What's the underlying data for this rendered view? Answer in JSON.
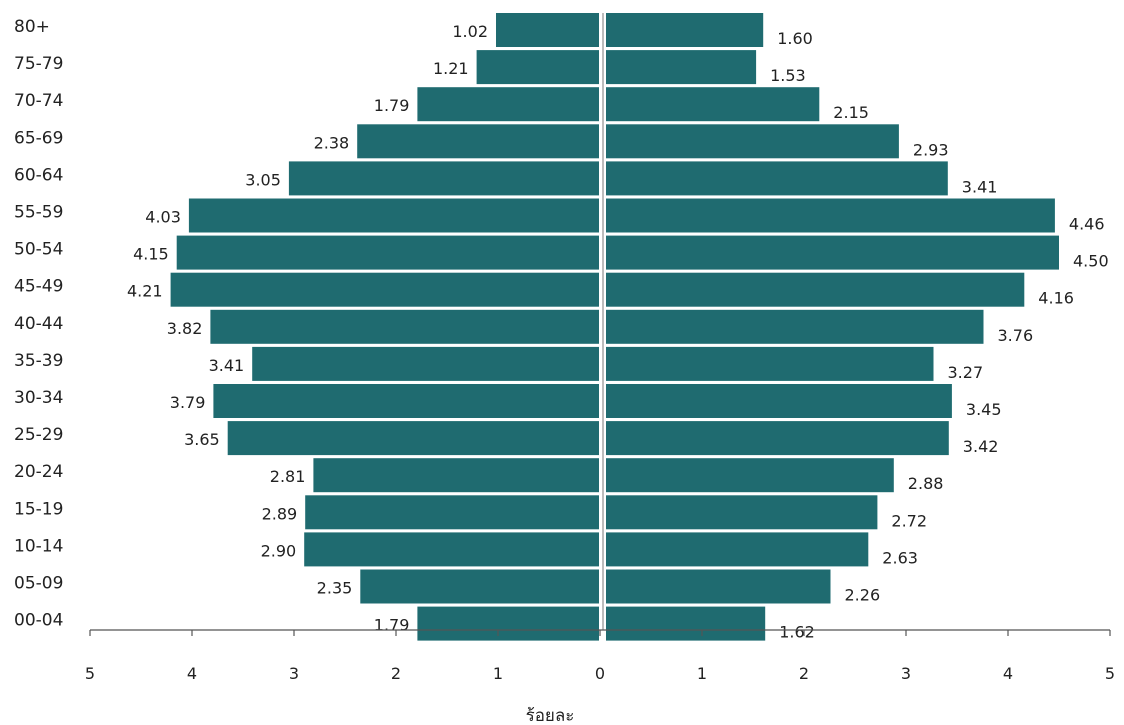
{
  "chart_data": {
    "type": "bar",
    "orientation": "horizontal-pyramid",
    "categories": [
      "80+",
      "75-79",
      "70-74",
      "65-69",
      "60-64",
      "55-59",
      "50-54",
      "45-49",
      "40-44",
      "35-39",
      "30-34",
      "25-29",
      "20-24",
      "15-19",
      "10-14",
      "05-09",
      "00-04"
    ],
    "series": [
      {
        "side": "left",
        "values": [
          1.02,
          1.21,
          1.79,
          2.38,
          3.05,
          4.03,
          4.15,
          4.21,
          3.82,
          3.41,
          3.79,
          3.65,
          2.81,
          2.89,
          2.9,
          2.35,
          1.79
        ],
        "labels": [
          "1.02",
          "1.21",
          "1.79",
          "2.38",
          "3.05",
          "4.03",
          "4.15",
          "4.21",
          "3.82",
          "3.41",
          "3.79",
          "3.65",
          "2.81",
          "2.89",
          "2.90",
          "2.35",
          "1.79"
        ]
      },
      {
        "side": "right",
        "values": [
          1.6,
          1.53,
          2.15,
          2.93,
          3.41,
          4.46,
          4.5,
          4.16,
          3.76,
          3.27,
          3.45,
          3.42,
          2.88,
          2.72,
          2.63,
          2.26,
          1.62
        ],
        "labels": [
          "1.60",
          "1.53",
          "2.15",
          "2.93",
          "3.41",
          "4.46",
          "4.50",
          "4.16",
          "3.76",
          "3.27",
          "3.45",
          "3.42",
          "2.88",
          "2.72",
          "2.63",
          "2.26",
          "1.62"
        ]
      }
    ],
    "xlabel": "ร้อยละ",
    "xlim": [
      -5,
      5
    ],
    "x_ticks": [
      "5",
      "4",
      "3",
      "2",
      "1",
      "0",
      "1",
      "2",
      "3",
      "4",
      "5"
    ],
    "grid": false,
    "bar_color": "#1f6b70"
  }
}
